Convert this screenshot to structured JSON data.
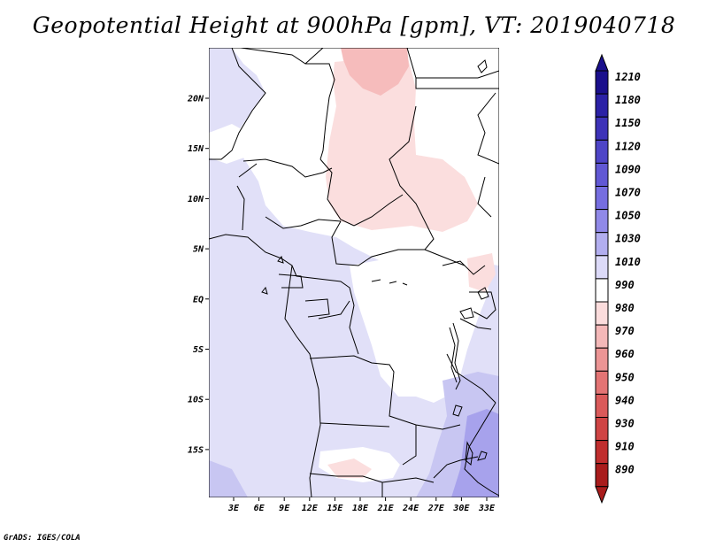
{
  "title": "Geopotential Height at 900hPa [gpm], VT: 2019040718",
  "footer": "GrADS: IGES/COLA",
  "map": {
    "lat_labels": [
      "20N",
      "15N",
      "10N",
      "5N",
      "EQ",
      "5S",
      "10S",
      "15S"
    ],
    "lon_labels": [
      "3E",
      "6E",
      "9E",
      "12E",
      "15E",
      "18E",
      "21E",
      "24E",
      "27E",
      "30E",
      "33E"
    ]
  },
  "colorbar": {
    "levels": [
      {
        "label": "1210",
        "color": "#1a0f8c"
      },
      {
        "label": "1180",
        "color": "#2b21a6"
      },
      {
        "label": "1150",
        "color": "#3d32b8"
      },
      {
        "label": "1120",
        "color": "#4e45c7"
      },
      {
        "label": "1090",
        "color": "#6158d4"
      },
      {
        "label": "1070",
        "color": "#766ee0"
      },
      {
        "label": "1050",
        "color": "#9089e8"
      },
      {
        "label": "1030",
        "color": "#b2aeef"
      },
      {
        "label": "1010",
        "color": "#dcdaf8"
      },
      {
        "label": "990",
        "color": "#ffffff"
      },
      {
        "label": "980",
        "color": "#fbdcdc"
      },
      {
        "label": "970",
        "color": "#f4b8b8"
      },
      {
        "label": "960",
        "color": "#ec9595"
      },
      {
        "label": "950",
        "color": "#e37474"
      },
      {
        "label": "940",
        "color": "#da5a5a"
      },
      {
        "label": "930",
        "color": "#cf4444"
      },
      {
        "label": "910",
        "color": "#c02e2e"
      },
      {
        "label": "890",
        "color": "#a91c1c"
      }
    ],
    "top_arrow_color": "#1a0f8c",
    "bottom_arrow_color": "#a91c1c"
  }
}
